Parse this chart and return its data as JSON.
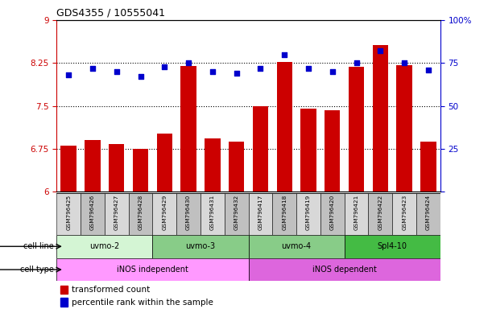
{
  "title": "GDS4355 / 10555041",
  "samples": [
    "GSM796425",
    "GSM796426",
    "GSM796427",
    "GSM796428",
    "GSM796429",
    "GSM796430",
    "GSM796431",
    "GSM796432",
    "GSM796417",
    "GSM796418",
    "GSM796419",
    "GSM796420",
    "GSM796421",
    "GSM796422",
    "GSM796423",
    "GSM796424"
  ],
  "bar_values": [
    6.8,
    6.9,
    6.83,
    6.75,
    7.02,
    8.2,
    6.93,
    6.87,
    7.5,
    8.27,
    7.45,
    7.42,
    8.19,
    8.56,
    8.21,
    6.87
  ],
  "dot_values": [
    68,
    72,
    70,
    67,
    73,
    75,
    70,
    69,
    72,
    80,
    72,
    70,
    75,
    82,
    75,
    71
  ],
  "ymin": 6,
  "ymax": 9,
  "yticks_left": [
    6,
    6.75,
    7.5,
    8.25,
    9
  ],
  "yticks_right": [
    0,
    25,
    50,
    75,
    100
  ],
  "bar_color": "#cc0000",
  "dot_color": "#0000cc",
  "bar_baseline": 6,
  "cell_lines": [
    {
      "label": "uvmo-2",
      "start": 0,
      "end": 3,
      "color": "#d4f5d4"
    },
    {
      "label": "uvmo-3",
      "start": 4,
      "end": 7,
      "color": "#88cc88"
    },
    {
      "label": "uvmo-4",
      "start": 8,
      "end": 11,
      "color": "#88cc88"
    },
    {
      "label": "Spl4-10",
      "start": 12,
      "end": 15,
      "color": "#44bb44"
    }
  ],
  "cell_line_label": "cell line",
  "cell_types": [
    {
      "label": "iNOS independent",
      "start": 0,
      "end": 7,
      "color": "#ff99ff"
    },
    {
      "label": "iNOS dependent",
      "start": 8,
      "end": 15,
      "color": "#dd66dd"
    }
  ],
  "cell_type_label": "cell type",
  "legend_bar_label": "transformed count",
  "legend_dot_label": "percentile rank within the sample",
  "tick_color_left": "#cc0000",
  "tick_color_right": "#0000cc",
  "bg_color": "#ffffff",
  "sample_cell_color_even": "#d8d8d8",
  "sample_cell_color_odd": "#c0c0c0"
}
